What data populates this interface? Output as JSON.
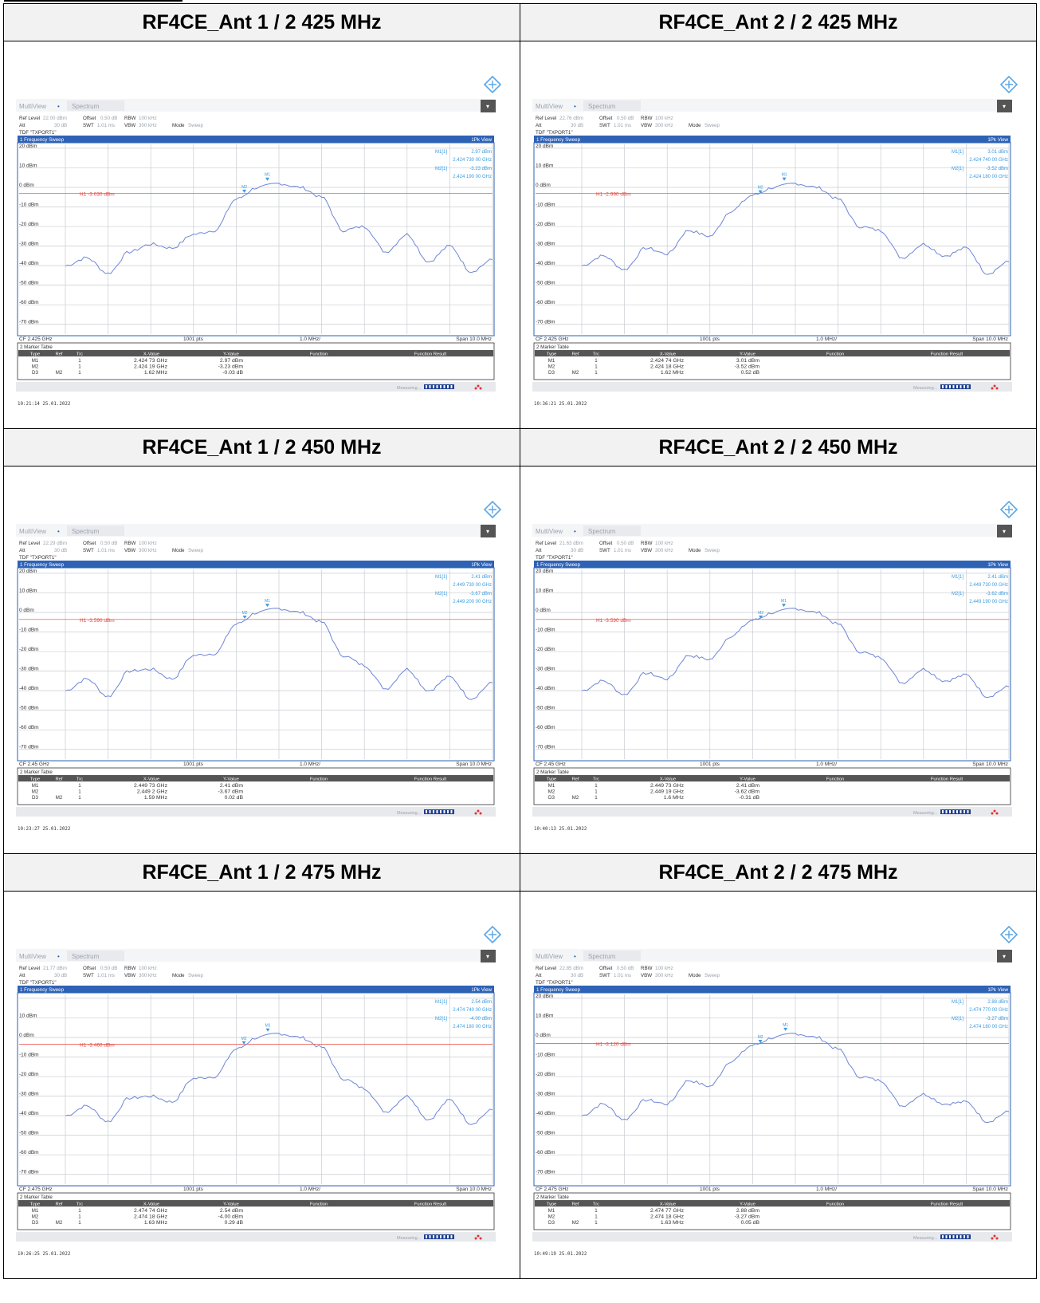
{
  "window": {
    "tab_multiview": "MultiView",
    "tab_spectrum": "Spectrum",
    "lbl_ref_level": "Ref Level",
    "lbl_offset": "Offset",
    "offset_val": "0.50 dB",
    "lbl_rbw": "RBW",
    "rbw_val": "100 kHz",
    "lbl_att": "Att",
    "att_val": "30 dB",
    "lbl_swt": "SWT",
    "swt_val": "1.01 ms",
    "lbl_vbw": "VBW",
    "vbw_val": "300 kHz",
    "lbl_mode": "Mode",
    "mode_val": "Sweep",
    "tdf": "TDF \"TXPORT1\"",
    "sweep_title": "1 Frequency Sweep",
    "pk_view": "1Pk View",
    "pts": "1001 pts",
    "div": "1.0 MHz/",
    "span": "Span 10.0 MHz",
    "marker_table_title": "2 Marker Table",
    "cols": [
      "Type",
      "Ref",
      "Trc",
      "X-Value",
      "Y-Value",
      "Function",
      "Function Result"
    ],
    "measuring": "Measuring...",
    "accent": "#2e62b5",
    "trace_color": "#6f86d6",
    "h1_color": "#e8443b"
  },
  "panels": [
    {
      "title": "RF4CE_Ant 1 / 2 425 MHz",
      "ref_level": "22.00 dBm",
      "h1": "H1 -3.030 dBm",
      "cf": "CF 2.425 GHz",
      "timestamp": "10:21:14  25.01.2022",
      "m1": [
        "M1[1]",
        "2.97 dBm",
        "2.424 730 00 GHz"
      ],
      "m2": [
        "M2[1]",
        "-3.23 dBm",
        "2.424 190 00 GHz"
      ],
      "rows": [
        [
          "M1",
          "",
          "1",
          "2.424 73 GHz",
          "2.97 dBm"
        ],
        [
          "M2",
          "",
          "1",
          "2.424 19 GHz",
          "-3.23 dBm"
        ],
        [
          "D3",
          "M2",
          "1",
          "1.62 MHz",
          "-0.03 dB"
        ]
      ],
      "chart_data": {
        "type": "line",
        "x": [
          2.42,
          2.4205,
          2.421,
          2.4215,
          2.422,
          2.4225,
          2.423,
          2.4235,
          2.424,
          2.4245,
          2.425,
          2.4255,
          2.426,
          2.4265,
          2.427,
          2.4275,
          2.428,
          2.4285,
          2.429,
          2.4295,
          2.43
        ],
        "values": [
          -40,
          -36,
          -44,
          -33,
          -29,
          -31,
          -24,
          -22,
          -6,
          0,
          2,
          0,
          -5,
          -22,
          -20,
          -33,
          -24,
          -38,
          -30,
          -43,
          -37
        ],
        "xlim": [
          2.42,
          2.43
        ],
        "ylim": [
          -75,
          22
        ],
        "yticks": [
          "20 dBm",
          "10 dBm",
          "0 dBm",
          "-10 dBm",
          "-20 dBm",
          "-30 dBm",
          "-40 dBm",
          "-50 dBm",
          "-60 dBm",
          "-70 dBm"
        ]
      }
    },
    {
      "title": "RF4CE_Ant 2 / 2 425 MHz",
      "ref_level": "22.76 dBm",
      "h1": "H1 -2.990 dBm",
      "cf": "CF 2.425 GHz",
      "timestamp": "10:36:21  25.01.2022",
      "m1": [
        "M1[1]",
        "3.01 dBm",
        "2.424 740 00 GHz"
      ],
      "m2": [
        "M2[1]",
        "-3.52 dBm",
        "2.424 180 00 GHz"
      ],
      "rows": [
        [
          "M1",
          "",
          "1",
          "2.424 74 GHz",
          "3.01 dBm"
        ],
        [
          "M2",
          "",
          "1",
          "2.424 18 GHz",
          "-3.52 dBm"
        ],
        [
          "D3",
          "M2",
          "1",
          "1.62 MHz",
          "0.52 dB"
        ]
      ],
      "chart_data": {
        "type": "line",
        "x": [
          2.42,
          2.4205,
          2.421,
          2.4215,
          2.422,
          2.4225,
          2.423,
          2.4235,
          2.424,
          2.4245,
          2.425,
          2.4255,
          2.426,
          2.4265,
          2.427,
          2.4275,
          2.428,
          2.4285,
          2.429,
          2.4295,
          2.43
        ],
        "values": [
          -40,
          -35,
          -42,
          -31,
          -34,
          -22,
          -25,
          -12,
          -4,
          0,
          2,
          0,
          -6,
          -20,
          -22,
          -36,
          -29,
          -35,
          -31,
          -44,
          -38
        ],
        "xlim": [
          2.42,
          2.43
        ],
        "ylim": [
          -75,
          22
        ],
        "yticks": [
          "20 dBm",
          "10 dBm",
          "0 dBm",
          "-10 dBm",
          "-20 dBm",
          "-30 dBm",
          "-40 dBm",
          "-50 dBm",
          "-60 dBm",
          "-70 dBm"
        ]
      }
    },
    {
      "title": "RF4CE_Ant 1 / 2 450 MHz",
      "ref_level": "22.29 dBm",
      "h1": "H1 -3.590 dBm",
      "cf": "CF 2.45 GHz",
      "timestamp": "10:23:27  25.01.2022",
      "m1": [
        "M1[1]",
        "2.41 dBm",
        "2.449 730 00 GHz"
      ],
      "m2": [
        "M2[1]",
        "-3.67 dBm",
        "2.449 200 00 GHz"
      ],
      "rows": [
        [
          "M1",
          "",
          "1",
          "2.449 73 GHz",
          "2.41 dBm"
        ],
        [
          "M2",
          "",
          "1",
          "2.449 2 GHz",
          "-3.67 dBm"
        ],
        [
          "D3",
          "M2",
          "1",
          "1.59 MHz",
          "0.02 dB"
        ]
      ],
      "chart_data": {
        "type": "line",
        "x": [
          2.445,
          2.4455,
          2.446,
          2.4465,
          2.447,
          2.4475,
          2.448,
          2.4485,
          2.449,
          2.4495,
          2.45,
          2.4505,
          2.451,
          2.4515,
          2.452,
          2.4525,
          2.453,
          2.4535,
          2.454,
          2.4545,
          2.455
        ],
        "values": [
          -40,
          -34,
          -43,
          -30,
          -29,
          -34,
          -22,
          -21,
          -6,
          0,
          2,
          0,
          -5,
          -22,
          -27,
          -39,
          -29,
          -40,
          -33,
          -44,
          -36
        ],
        "xlim": [
          2.445,
          2.455
        ],
        "ylim": [
          -75,
          22
        ],
        "yticks": [
          "20 dBm",
          "10 dBm",
          "0 dBm",
          "-10 dBm",
          "-20 dBm",
          "-30 dBm",
          "-40 dBm",
          "-50 dBm",
          "-60 dBm",
          "-70 dBm"
        ]
      }
    },
    {
      "title": "RF4CE_Ant 2 / 2 450 MHz",
      "ref_level": "21.63 dBm",
      "h1": "H1 -3.590 dBm",
      "cf": "CF 2.45 GHz",
      "timestamp": "10:40:13  25.01.2022",
      "m1": [
        "M1[1]",
        "2.41 dBm",
        "2.449 730 00 GHz"
      ],
      "m2": [
        "M2[1]",
        "-3.62 dBm",
        "2.449 190 00 GHz"
      ],
      "rows": [
        [
          "M1",
          "",
          "1",
          "2.449 73 GHz",
          "2.41 dBm"
        ],
        [
          "M2",
          "",
          "1",
          "2.449 19 GHz",
          "-3.62 dBm"
        ],
        [
          "D3",
          "M2",
          "1",
          "1.6 MHz",
          "-0.31 dB"
        ]
      ],
      "chart_data": {
        "type": "line",
        "x": [
          2.445,
          2.4455,
          2.446,
          2.4465,
          2.447,
          2.4475,
          2.448,
          2.4485,
          2.449,
          2.4495,
          2.45,
          2.4505,
          2.451,
          2.4515,
          2.452,
          2.4525,
          2.453,
          2.4535,
          2.454,
          2.4545,
          2.455
        ],
        "values": [
          -40,
          -35,
          -42,
          -31,
          -34,
          -22,
          -24,
          -12,
          -4,
          0,
          2,
          0,
          -6,
          -20,
          -23,
          -36,
          -29,
          -35,
          -32,
          -43,
          -38
        ],
        "xlim": [
          2.445,
          2.455
        ],
        "ylim": [
          -75,
          22
        ],
        "yticks": [
          "20 dBm",
          "10 dBm",
          "0 dBm",
          "-10 dBm",
          "-20 dBm",
          "-30 dBm",
          "-40 dBm",
          "-50 dBm",
          "-60 dBm",
          "-70 dBm"
        ]
      }
    },
    {
      "title": "RF4CE_Ant 1 / 2 475 MHz",
      "ref_level": "21.77 dBm",
      "h1": "H1 -3.460 dBm",
      "cf": "CF 2.475 GHz",
      "timestamp": "10:26:25  25.01.2022",
      "m1": [
        "M1[1]",
        "2.54 dBm",
        "2.474 740 00 GHz"
      ],
      "m2": [
        "M2[1]",
        "-4.00 dBm",
        "2.474 180 00 GHz"
      ],
      "rows": [
        [
          "M1",
          "",
          "1",
          "2.474 74 GHz",
          "2.54 dBm"
        ],
        [
          "M2",
          "",
          "1",
          "2.474 18 GHz",
          "-4.00 dBm"
        ],
        [
          "D3",
          "M2",
          "1",
          "1.63 MHz",
          "0.29 dB"
        ]
      ],
      "chart_data": {
        "type": "line",
        "x": [
          2.47,
          2.4705,
          2.471,
          2.4715,
          2.472,
          2.4725,
          2.473,
          2.4735,
          2.474,
          2.4745,
          2.475,
          2.4755,
          2.476,
          2.4765,
          2.477,
          2.4775,
          2.478,
          2.4785,
          2.479,
          2.4795,
          2.48
        ],
        "values": [
          -40,
          -35,
          -43,
          -31,
          -30,
          -33,
          -21,
          -20,
          -6,
          0,
          2,
          0,
          -5,
          -21,
          -26,
          -38,
          -30,
          -42,
          -32,
          -44,
          -37
        ],
        "xlim": [
          2.47,
          2.48
        ],
        "ylim": [
          -75,
          22
        ],
        "yticks": [
          "",
          "10 dBm",
          "0 dBm",
          "-10 dBm",
          "-20 dBm",
          "-30 dBm",
          "-40 dBm",
          "-50 dBm",
          "-60 dBm",
          "-70 dBm"
        ]
      }
    },
    {
      "title": "RF4CE_Ant 2 / 2 475 MHz",
      "ref_level": "22.85 dBm",
      "h1": "H1 -3.120 dBm",
      "cf": "CF 2.475 GHz",
      "timestamp": "10:49:19  25.01.2022",
      "m1": [
        "M1[1]",
        "2.88 dBm",
        "2.474 770 00 GHz"
      ],
      "m2": [
        "M2[1]",
        "-3.27 dBm",
        "2.474 180 00 GHz"
      ],
      "rows": [
        [
          "M1",
          "",
          "1",
          "2.474 77 GHz",
          "2.88 dBm"
        ],
        [
          "M2",
          "",
          "1",
          "2.474 18 GHz",
          "-3.27 dBm"
        ],
        [
          "D3",
          "M2",
          "1",
          "1.63 MHz",
          "0.05 dB"
        ]
      ],
      "chart_data": {
        "type": "line",
        "x": [
          2.47,
          2.4705,
          2.471,
          2.4715,
          2.472,
          2.4725,
          2.473,
          2.4735,
          2.474,
          2.4745,
          2.475,
          2.4755,
          2.476,
          2.4765,
          2.477,
          2.4775,
          2.478,
          2.4785,
          2.479,
          2.4795,
          2.48
        ],
        "values": [
          -40,
          -34,
          -42,
          -32,
          -34,
          -22,
          -25,
          -12,
          -4,
          0,
          2,
          0,
          -6,
          -20,
          -22,
          -35,
          -29,
          -34,
          -33,
          -43,
          -38
        ],
        "xlim": [
          2.47,
          2.48
        ],
        "ylim": [
          -75,
          22
        ],
        "yticks": [
          "20 dBm",
          "10 dBm",
          "0 dBm",
          "-10 dBm",
          "-20 dBm",
          "-30 dBm",
          "-40 dBm",
          "-50 dBm",
          "-60 dBm",
          "-70 dBm"
        ]
      }
    }
  ]
}
